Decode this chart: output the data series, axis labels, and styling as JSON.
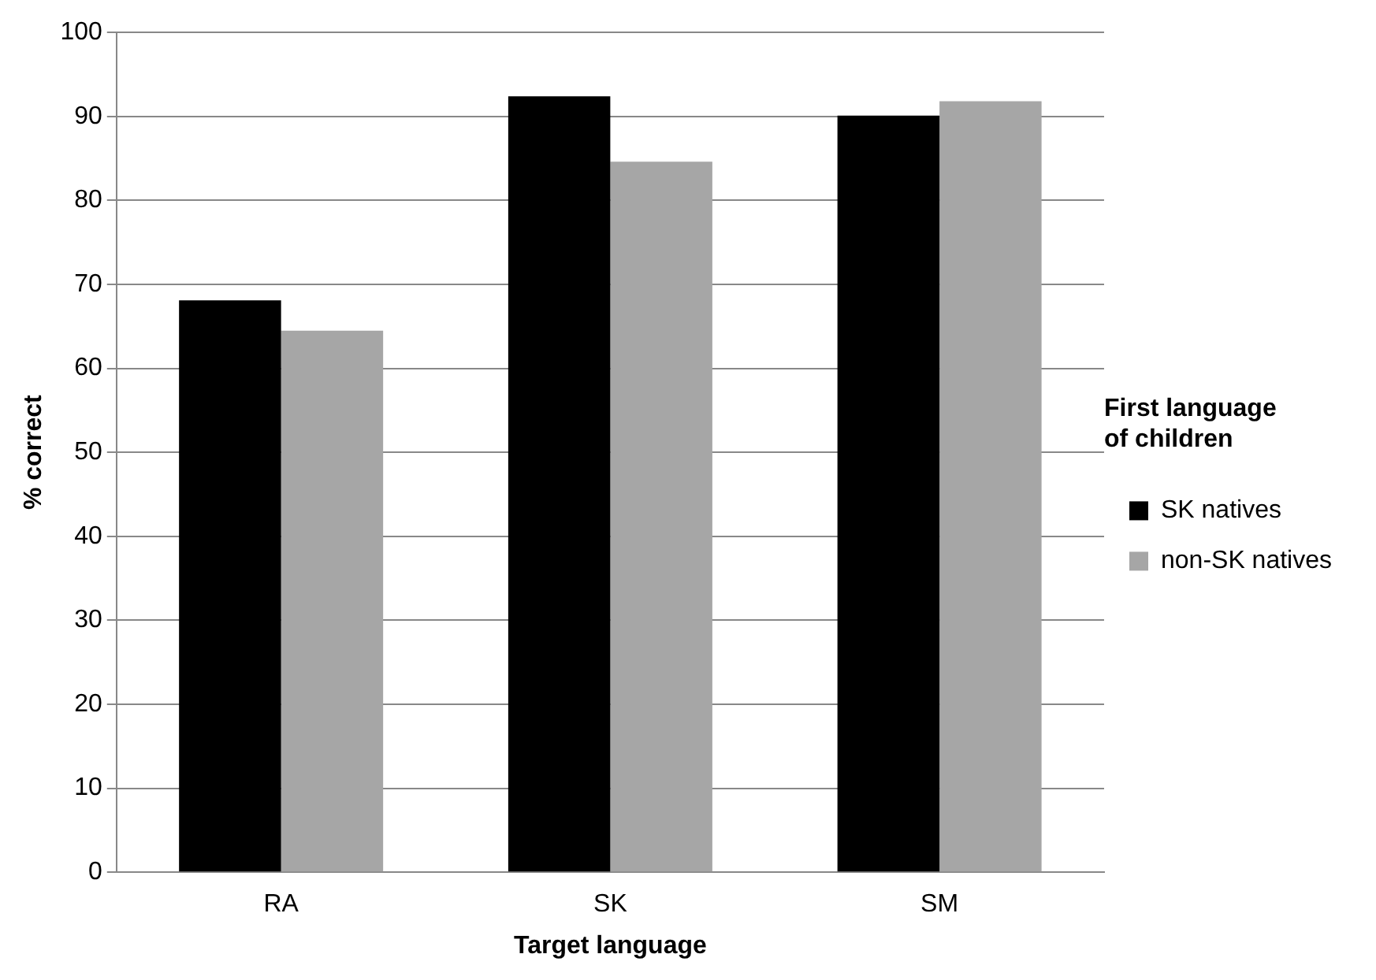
{
  "chart_data": {
    "type": "bar",
    "xlabel": "Target language",
    "ylabel": "% correct",
    "legend_title": "First language of children",
    "categories": [
      "RA",
      "SK",
      "SM"
    ],
    "series": [
      {
        "name": "SK natives",
        "color": "#000000",
        "values": [
          68.1,
          92.4,
          90.1
        ]
      },
      {
        "name": "non-SK natives",
        "color": "#a6a6a6",
        "values": [
          64.5,
          84.6,
          91.8
        ]
      }
    ],
    "ylim": [
      0,
      100
    ],
    "yticks": [
      0,
      10,
      20,
      30,
      40,
      50,
      60,
      70,
      80,
      90,
      100
    ],
    "grid": "y",
    "legend": "right"
  }
}
